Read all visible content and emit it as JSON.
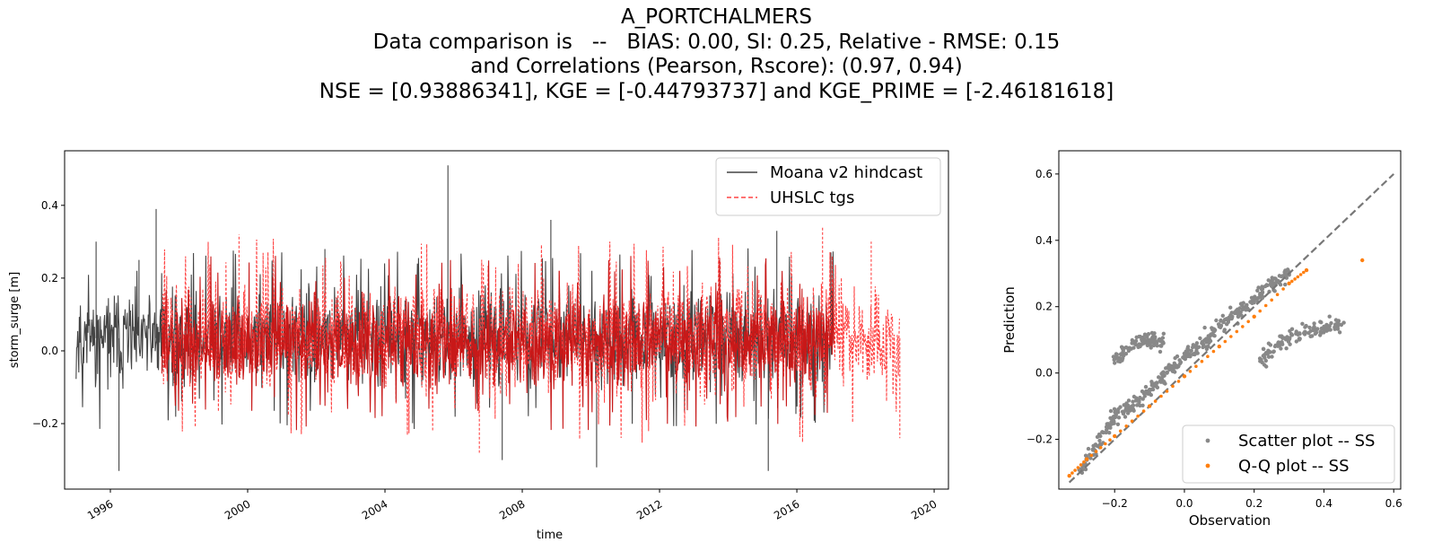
{
  "title_lines": [
    "A_PORTCHALMERS",
    "Data comparison is   --   BIAS: 0.00, SI: 0.25, Relative - RMSE: 0.15",
    "and Correlations (Pearson, Rscore): (0.97, 0.94)",
    "NSE = [0.93886341], KGE = [-0.44793737] and KGE_PRIME = [-2.46181618]"
  ],
  "colors": {
    "model": "#444444",
    "obs": "#ff4444",
    "overlap": "#c81818",
    "scatter": "#888888",
    "qq": "#ff7f0e",
    "diag": "#777777"
  },
  "chart_data": [
    {
      "type": "line",
      "xlabel": "time",
      "ylabel": "storm_surge [m]",
      "xlim": [
        "1994-09-01",
        "2020-06-01"
      ],
      "ylim": [
        -0.38,
        0.55
      ],
      "x_ticks": [
        "1996",
        "2000",
        "2004",
        "2008",
        "2012",
        "2016",
        "2020"
      ],
      "y_ticks": [
        -0.2,
        0.0,
        0.2,
        0.4
      ],
      "y_tick_labels": [
        "−0.2",
        "0.0",
        "0.2",
        "0.4"
      ],
      "legend": {
        "placement": "top-right",
        "entries": [
          "Moana v2 hindcast",
          "UHSLC tgs"
        ]
      },
      "series": [
        {
          "name": "Moana v2 hindcast",
          "style": "solid",
          "x_range": [
            "1995-01-01",
            "2017-02-01"
          ],
          "typical_range": [
            -0.15,
            0.22
          ],
          "peaks": [
            {
              "x": "1995-08-01",
              "y": 0.3
            },
            {
              "x": "1996-04-01",
              "y": -0.33
            },
            {
              "x": "1996-11-01",
              "y": 0.25
            },
            {
              "x": "1997-05-01",
              "y": 0.39
            },
            {
              "x": "2002-04-01",
              "y": 0.28
            },
            {
              "x": "2005-11-01",
              "y": 0.51
            },
            {
              "x": "2007-06-01",
              "y": -0.3
            },
            {
              "x": "2008-11-01",
              "y": 0.36
            },
            {
              "x": "2010-03-01",
              "y": -0.32
            },
            {
              "x": "2015-03-01",
              "y": -0.33
            },
            {
              "x": "2015-06-01",
              "y": 0.33
            }
          ]
        },
        {
          "name": "UHSLC tgs",
          "style": "dashed",
          "x_range": [
            "1997-07-01",
            "2019-01-01"
          ],
          "typical_range": [
            -0.18,
            0.25
          ],
          "peaks": [
            {
              "x": "1999-10-01",
              "y": 0.32
            },
            {
              "x": "2006-10-01",
              "y": -0.28
            },
            {
              "x": "2016-10-01",
              "y": 0.34
            },
            {
              "x": "2018-03-01",
              "y": 0.3
            },
            {
              "x": "2019-01-01",
              "y": -0.24
            }
          ]
        }
      ]
    },
    {
      "type": "scatter",
      "xlabel": "Observation",
      "ylabel": "Prediction",
      "xlim": [
        -0.36,
        0.62
      ],
      "ylim": [
        -0.35,
        0.67
      ],
      "x_ticks": [
        -0.2,
        0.0,
        0.2,
        0.4,
        0.6
      ],
      "x_tick_labels": [
        "−0.2",
        "0.0",
        "0.2",
        "0.4",
        "0.6"
      ],
      "y_ticks": [
        -0.2,
        0.0,
        0.2,
        0.4,
        0.6
      ],
      "y_tick_labels": [
        "−0.2",
        "0.0",
        "0.2",
        "0.4",
        "0.6"
      ],
      "legend": {
        "placement": "bottom-right",
        "entries": [
          "Scatter plot -- SS",
          "Q-Q plot -- SS"
        ]
      },
      "reference_line": {
        "from": [
          -0.33,
          -0.33
        ],
        "to": [
          0.6,
          0.6
        ],
        "style": "dashed"
      },
      "series": [
        {
          "name": "Scatter plot -- SS",
          "points": [
            [
              -0.3,
              -0.29
            ],
            [
              -0.25,
              -0.22
            ],
            [
              -0.2,
              -0.13
            ],
            [
              -0.15,
              -0.1
            ],
            [
              -0.1,
              -0.05
            ],
            [
              -0.05,
              0.0
            ],
            [
              0.0,
              0.05
            ],
            [
              0.05,
              0.09
            ],
            [
              0.1,
              0.14
            ],
            [
              0.15,
              0.18
            ],
            [
              0.2,
              0.22
            ],
            [
              0.25,
              0.27
            ],
            [
              0.3,
              0.3
            ],
            [
              -0.2,
              0.03
            ],
            [
              -0.15,
              0.09
            ],
            [
              -0.1,
              0.1
            ],
            [
              -0.06,
              0.09
            ],
            [
              0.22,
              0.04
            ],
            [
              0.27,
              0.09
            ],
            [
              0.33,
              0.12
            ],
            [
              0.4,
              0.14
            ],
            [
              0.45,
              0.145
            ]
          ]
        },
        {
          "name": "Q-Q plot -- SS",
          "points": [
            [
              -0.33,
              -0.31
            ],
            [
              -0.28,
              -0.26
            ],
            [
              -0.2,
              -0.19
            ],
            [
              -0.1,
              -0.1
            ],
            [
              0.0,
              -0.01
            ],
            [
              0.1,
              0.08
            ],
            [
              0.2,
              0.17
            ],
            [
              0.3,
              0.27
            ],
            [
              0.35,
              0.31
            ],
            [
              0.51,
              0.34
            ]
          ]
        }
      ]
    }
  ]
}
